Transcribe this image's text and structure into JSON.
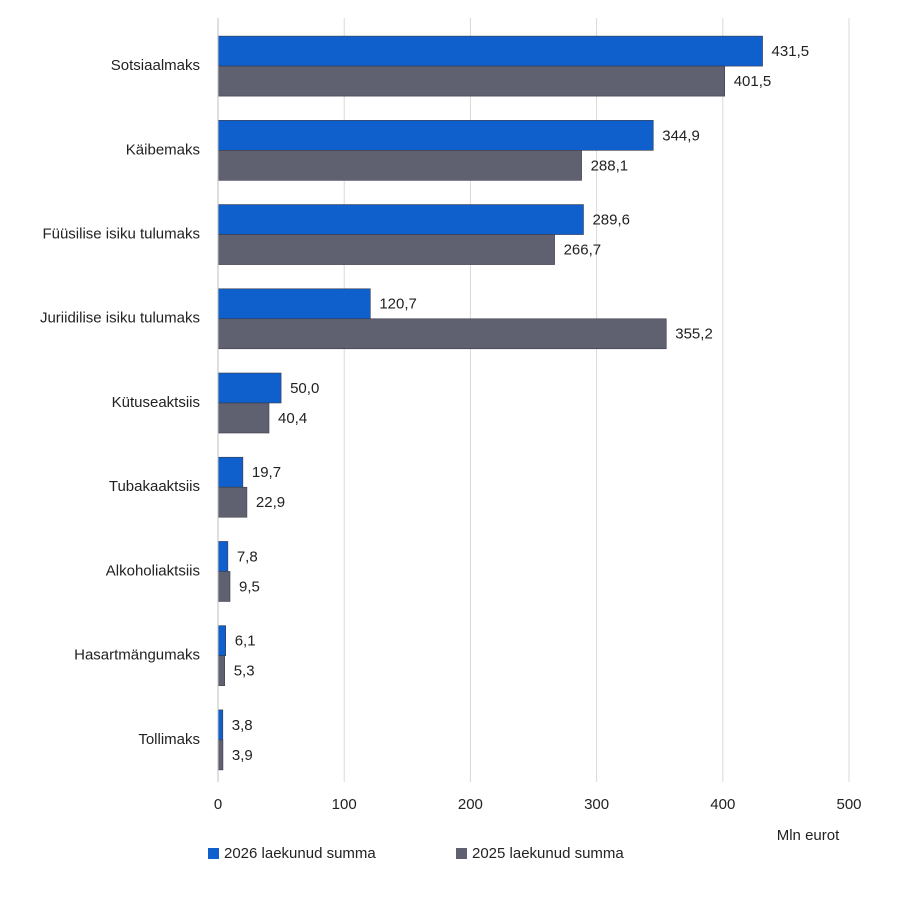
{
  "chart_data": {
    "type": "hbar",
    "x_label": "Mln eurot",
    "categories": [
      "Sotsiaalmaks",
      "Käibemaks",
      "Füüsilise isiku tulumaks",
      "Juriidilise isiku tulumaks",
      "Kütuseaktsiis",
      "Tubakaaktsiis",
      "Alkoholiaktsiis",
      "Hasartmängumaks",
      "Tollimaks"
    ],
    "series": [
      {
        "name": "2026 laekunud summa",
        "color": "#0f5fcc",
        "values": [
          431.5,
          344.9,
          289.6,
          120.7,
          50.0,
          19.7,
          7.8,
          6.1,
          3.8
        ],
        "value_labels": [
          "431,5",
          "344,9",
          "289,6",
          "120,7",
          "50,0",
          "19,7",
          "7,8",
          "6,1",
          "3,8"
        ]
      },
      {
        "name": "2025 laekunud summa",
        "color": "#5f6170",
        "values": [
          401.5,
          288.1,
          266.7,
          355.2,
          40.4,
          22.9,
          9.5,
          5.3,
          3.9
        ],
        "value_labels": [
          "401,5",
          "288,1",
          "266,7",
          "355,2",
          "40,4",
          "22,9",
          "9,5",
          "5,3",
          "3,9"
        ]
      }
    ],
    "xlim": [
      0,
      500
    ],
    "xticks": [
      0,
      100,
      200,
      300,
      400,
      500
    ],
    "grid": true,
    "legend": "bottom"
  }
}
